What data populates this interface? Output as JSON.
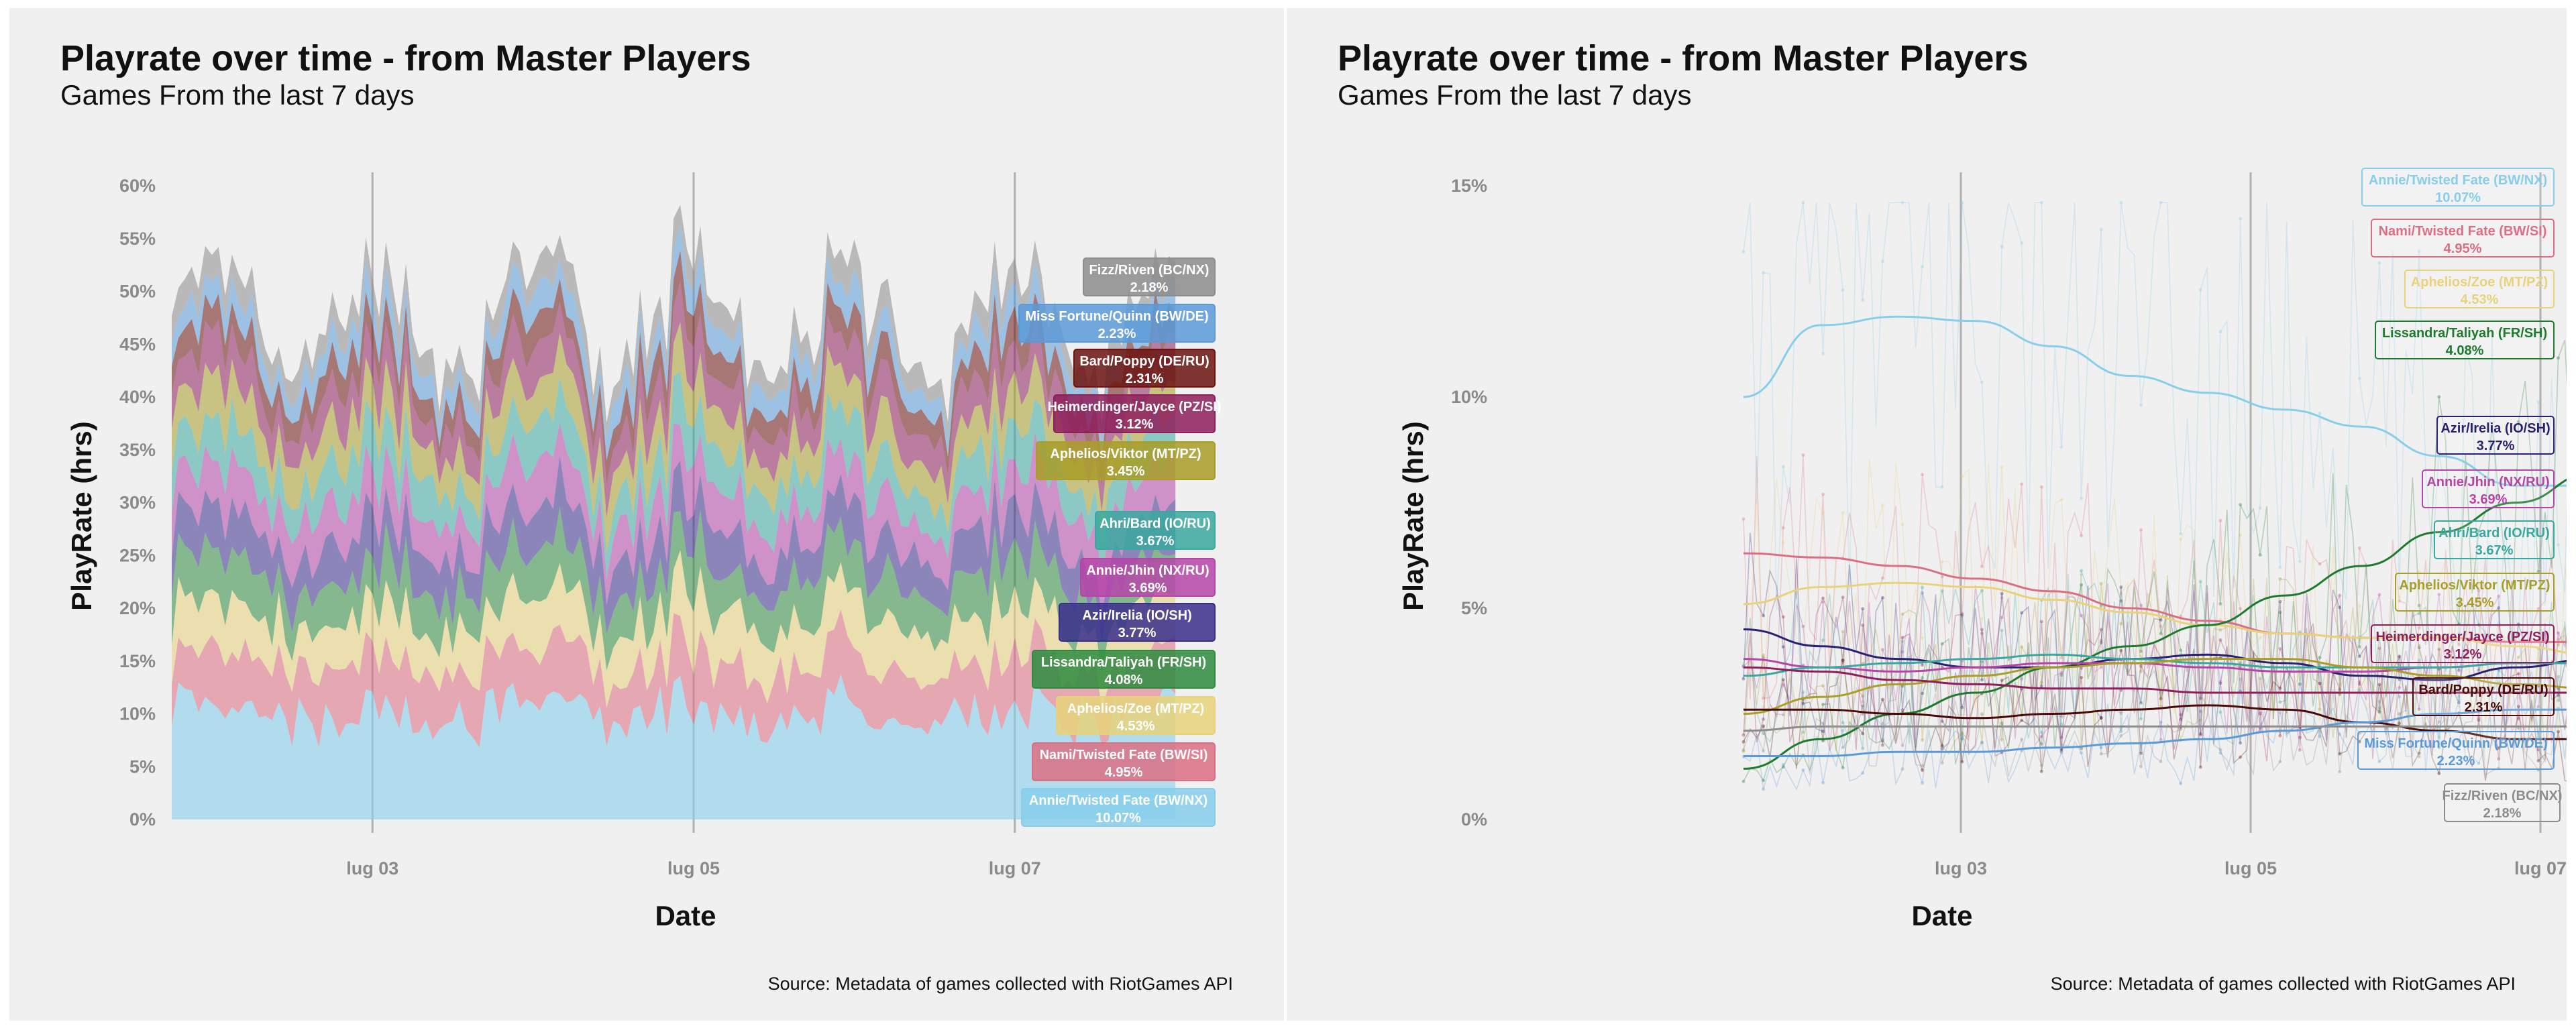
{
  "panels": {
    "left": {
      "title": "Playrate over time - from Master Players",
      "subtitle": "Games From the last 7 days",
      "source": "Source: Metadata of games collected with RiotGames API"
    },
    "right": {
      "title": "Playrate over time - from Master Players",
      "subtitle": "Games From the last 7 days",
      "source": "Source: Metadata of games collected with RiotGames API"
    }
  },
  "chart_data": [
    {
      "type": "area",
      "stacked": true,
      "title": "Playrate over time - from Master Players",
      "subtitle": "Games From the last 7 days",
      "xlabel": "Date",
      "ylabel": "PlayRate (hrs)",
      "x_range": [
        "2023-07-01T18:00",
        "2023-07-08T06:00"
      ],
      "x_ticks": [
        "lug 03",
        "lug 05",
        "lug 07"
      ],
      "x_tick_days": [
        2,
        4,
        6
      ],
      "ylim": [
        0,
        60
      ],
      "y_ticks": [
        "0%",
        "5%",
        "10%",
        "15%",
        "20%",
        "25%",
        "30%",
        "35%",
        "40%",
        "45%",
        "50%",
        "55%",
        "60%"
      ],
      "grid": "vertical",
      "series": [
        {
          "name": "Annie/Twisted Fate (BW/NX)",
          "avg": 10.07,
          "label": "10.07%",
          "color": "#87ceeb"
        },
        {
          "name": "Nami/Twisted Fate (BW/SI)",
          "avg": 4.95,
          "label": "4.95%",
          "color": "#dc6e82"
        },
        {
          "name": "Aphelios/Zoe (MT/PZ)",
          "avg": 4.53,
          "label": "4.53%",
          "color": "#e8d27a"
        },
        {
          "name": "Lissandra/Taliyah (FR/SH)",
          "avg": 4.08,
          "label": "4.08%",
          "color": "#2e8b3e"
        },
        {
          "name": "Azir/Irelia (IO/SH)",
          "avg": 3.77,
          "label": "3.77%",
          "color": "#3a2e8c"
        },
        {
          "name": "Annie/Jhin (NX/RU)",
          "avg": 3.69,
          "label": "3.69%",
          "color": "#b545a8"
        },
        {
          "name": "Ahri/Bard (IO/RU)",
          "avg": 3.67,
          "label": "3.67%",
          "color": "#3aa8a0"
        },
        {
          "name": "Aphelios/Viktor (MT/PZ)",
          "avg": 3.45,
          "label": "3.45%",
          "color": "#a89e28"
        },
        {
          "name": "Heimerdinger/Jayce (PZ/SI)",
          "avg": 3.12,
          "label": "3.12%",
          "color": "#8e1f5c"
        },
        {
          "name": "Bard/Poppy (DE/RU)",
          "avg": 2.31,
          "label": "2.31%",
          "color": "#6b1410"
        },
        {
          "name": "Miss Fortune/Quinn (BW/DE)",
          "avg": 2.23,
          "label": "2.23%",
          "color": "#5a9ad8"
        },
        {
          "name": "Fizz/Riven (BC/NX)",
          "avg": 2.18,
          "label": "2.18%",
          "color": "#8c8c8c"
        }
      ]
    },
    {
      "type": "line",
      "title": "Playrate over time - from Master Players",
      "subtitle": "Games From the last 7 days",
      "xlabel": "Date",
      "ylabel": "PlayRate (hrs)",
      "x_range": [
        "2023-07-01T18:00",
        "2023-07-08T06:00"
      ],
      "x_ticks": [
        "lug 03",
        "lug 05",
        "lug 07"
      ],
      "x_tick_days": [
        2,
        4,
        6
      ],
      "ylim": [
        0,
        15
      ],
      "y_ticks": [
        "0%",
        "5%",
        "10%",
        "15%"
      ],
      "grid": "vertical",
      "series": [
        {
          "name": "Annie/Twisted Fate (BW/NX)",
          "label": "10.07%",
          "color": "#87ceeb",
          "trend": [
            10.0,
            11.7,
            11.9,
            11.8,
            11.2,
            10.5,
            10.1,
            9.7,
            9.3,
            8.6,
            7.9,
            7.9,
            8.6
          ]
        },
        {
          "name": "Nami/Twisted Fate (BW/SI)",
          "label": "4.95%",
          "color": "#dc6e82",
          "trend": [
            6.3,
            6.2,
            6.0,
            5.7,
            5.4,
            5.0,
            4.7,
            4.4,
            4.3,
            4.3,
            4.2,
            4.2,
            4.2
          ]
        },
        {
          "name": "Aphelios/Zoe (MT/PZ)",
          "label": "4.53%",
          "color": "#e8d27a",
          "trend": [
            5.1,
            5.5,
            5.6,
            5.5,
            5.2,
            4.9,
            4.6,
            4.4,
            4.3,
            4.3,
            4.1,
            3.9,
            3.7
          ]
        },
        {
          "name": "Lissandra/Taliyah (FR/SH)",
          "label": "4.08%",
          "color": "#1e7a2e",
          "trend": [
            1.2,
            1.9,
            2.5,
            3.0,
            3.6,
            4.1,
            4.6,
            5.3,
            6.0,
            6.8,
            7.5,
            8.2,
            8.9
          ]
        },
        {
          "name": "Azir/Irelia (IO/SH)",
          "label": "3.77%",
          "color": "#2a2270",
          "trend": [
            4.5,
            4.1,
            3.8,
            3.6,
            3.6,
            3.8,
            3.9,
            3.7,
            3.4,
            3.3,
            3.6,
            3.8,
            3.5
          ]
        },
        {
          "name": "Annie/Jhin (NX/RU)",
          "label": "3.69%",
          "color": "#b545a8",
          "trend": [
            3.8,
            3.6,
            3.5,
            3.6,
            3.7,
            3.7,
            3.6,
            3.5,
            3.5,
            3.6,
            3.7,
            3.7,
            3.6
          ]
        },
        {
          "name": "Ahri/Bard (IO/RU)",
          "label": "3.67%",
          "color": "#3aa8a0",
          "trend": [
            3.4,
            3.6,
            3.7,
            3.8,
            3.9,
            3.8,
            3.7,
            3.6,
            3.6,
            3.6,
            3.7,
            3.7,
            3.7
          ]
        },
        {
          "name": "Aphelios/Viktor (MT/PZ)",
          "label": "3.45%",
          "color": "#a89e28",
          "trend": [
            2.5,
            2.9,
            3.2,
            3.4,
            3.6,
            3.7,
            3.8,
            3.8,
            3.6,
            3.4,
            3.2,
            3.1,
            3.1
          ]
        },
        {
          "name": "Heimerdinger/Jayce (PZ/SI)",
          "label": "3.12%",
          "color": "#8e1f5c",
          "trend": [
            3.6,
            3.5,
            3.3,
            3.2,
            3.1,
            3.1,
            3.0,
            3.0,
            3.0,
            3.0,
            3.0,
            3.0,
            3.0
          ]
        },
        {
          "name": "Bard/Poppy (DE/RU)",
          "label": "2.31%",
          "color": "#4a0c08",
          "trend": [
            2.6,
            2.6,
            2.5,
            2.4,
            2.5,
            2.6,
            2.7,
            2.6,
            2.3,
            2.1,
            1.9,
            1.9,
            1.8
          ]
        },
        {
          "name": "Miss Fortune/Quinn (BW/DE)",
          "label": "2.23%",
          "color": "#5a9ad8",
          "trend": [
            1.5,
            1.5,
            1.6,
            1.6,
            1.7,
            1.8,
            1.9,
            2.1,
            2.3,
            2.5,
            2.6,
            2.6,
            2.5
          ]
        },
        {
          "name": "Fizz/Riven (BC/NX)",
          "label": "2.18%",
          "color": "#8c8c8c",
          "trend": [
            2.1,
            2.2,
            2.2,
            2.2,
            2.2,
            2.2,
            2.2,
            2.2,
            2.2,
            2.2,
            2.2,
            2.2,
            2.2
          ]
        }
      ]
    }
  ]
}
